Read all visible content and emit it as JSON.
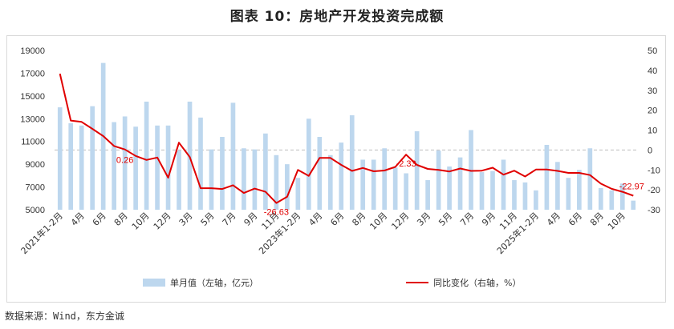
{
  "title": "图表 10：房地产开发投资完成额",
  "source": "数据来源：Wind，东方金诚",
  "chart_data": {
    "type": "bar+line",
    "left_axis": {
      "ylim": [
        5000,
        19000
      ],
      "ticks": [
        5000,
        7000,
        9000,
        11000,
        13000,
        15000,
        17000,
        19000
      ]
    },
    "right_axis": {
      "ylim": [
        -30,
        50
      ],
      "ticks": [
        -30,
        -20,
        -10,
        0,
        10,
        20,
        30,
        40,
        50
      ]
    },
    "x_tick_labels": [
      "2021年1-2月",
      "4月",
      "6月",
      "8月",
      "10月",
      "12月",
      "3月",
      "5月",
      "7月",
      "9月",
      "11月",
      "2023年1-2月",
      "4月",
      "6月",
      "8月",
      "10月",
      "12月",
      "3月",
      "5月",
      "7月",
      "9月",
      "11月",
      "2025年1-2月",
      "4月",
      "6月",
      "8月",
      "10月"
    ],
    "x_tick_every": 2,
    "series": [
      {
        "name": "单月值（左轴，亿元）",
        "type": "bar",
        "axis": "left",
        "color": "#bdd7ee",
        "values": [
          14000,
          12600,
          12400,
          14100,
          17900,
          12700,
          13200,
          12300,
          14500,
          12400,
          12400,
          10200,
          14500,
          13100,
          10300,
          11400,
          14400,
          10400,
          10300,
          11700,
          9800,
          9000,
          7800,
          13000,
          11400,
          9800,
          10900,
          13300,
          9400,
          9400,
          10400,
          8700,
          8200,
          11900,
          7600,
          10200,
          8800,
          9600,
          12000,
          8300,
          8400,
          9400,
          7600,
          7400,
          6700,
          10700,
          9200,
          7800,
          8500,
          10400,
          6900,
          6700,
          7300,
          5800
        ]
      },
      {
        "name": "同比变化（右轴，%）",
        "type": "line",
        "axis": "right",
        "color": "#e00000",
        "values": [
          38.3,
          14.8,
          14.1,
          10.6,
          7.0,
          2.0,
          0.26,
          -3.0,
          -5.0,
          -3.8,
          -13.9,
          3.7,
          -3.5,
          -19.2,
          -19.2,
          -19.6,
          -17.7,
          -21.6,
          -19.4,
          -21.0,
          -26.63,
          -23.5,
          -10.0,
          -13.0,
          -4.0,
          -4.0,
          -7.5,
          -10.5,
          -9.0,
          -10.7,
          -10.3,
          -8.5,
          -2.33,
          -7.5,
          -9.5,
          -10.0,
          -10.8,
          -9.3,
          -10.5,
          -10.4,
          -8.9,
          -12.4,
          -10.4,
          -13.3,
          -9.8,
          -9.8,
          -10.5,
          -11.5,
          -11.5,
          -12.6,
          -16.9,
          -19.5,
          -21.0,
          -22.97
        ]
      }
    ],
    "annotations": [
      {
        "label": "0.26",
        "index": 6
      },
      {
        "label": "-26.63",
        "index": 20
      },
      {
        "label": "-2.33",
        "index": 32
      },
      {
        "label": "-22.97",
        "index": 53
      }
    ],
    "legend": [
      "单月值（左轴，亿元）",
      "同比变化（右轴，%）"
    ],
    "legend_position": "bottom",
    "colors": {
      "bar": "#bdd7ee",
      "line": "#e00000",
      "zero_line": "#bfbfbf",
      "axis_text": "#333333"
    }
  }
}
